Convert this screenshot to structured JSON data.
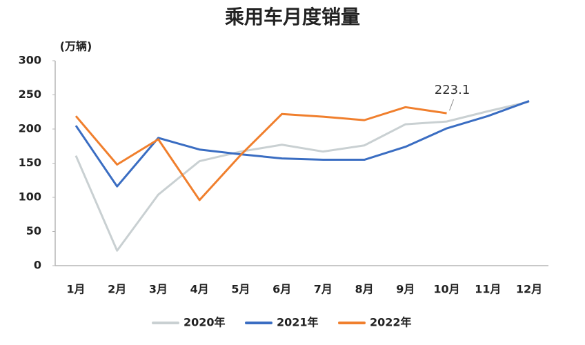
{
  "chart_data": {
    "type": "line",
    "title": "乘用车月度销量",
    "y_unit": "(万辆)",
    "categories": [
      "1月",
      "2月",
      "3月",
      "4月",
      "5月",
      "6月",
      "7月",
      "8月",
      "9月",
      "10月",
      "11月",
      "12月"
    ],
    "series": [
      {
        "name": "2020年",
        "color": "#c9d0d2",
        "values": [
          161,
          22,
          104,
          153,
          167,
          177,
          167,
          176,
          207,
          211,
          226,
          240
        ]
      },
      {
        "name": "2021年",
        "color": "#3a6dc2",
        "values": [
          205,
          116,
          187,
          170,
          163,
          157,
          155,
          155,
          174,
          201,
          219,
          241
        ]
      },
      {
        "name": "2022年",
        "color": "#f07f2d",
        "values": [
          219,
          148,
          185,
          96,
          162,
          222,
          218,
          213,
          232,
          223.1,
          null,
          null
        ]
      }
    ],
    "ylim": [
      0,
      300
    ],
    "yticks": [
      0,
      50,
      100,
      150,
      200,
      250,
      300
    ],
    "grid": false
  }
}
